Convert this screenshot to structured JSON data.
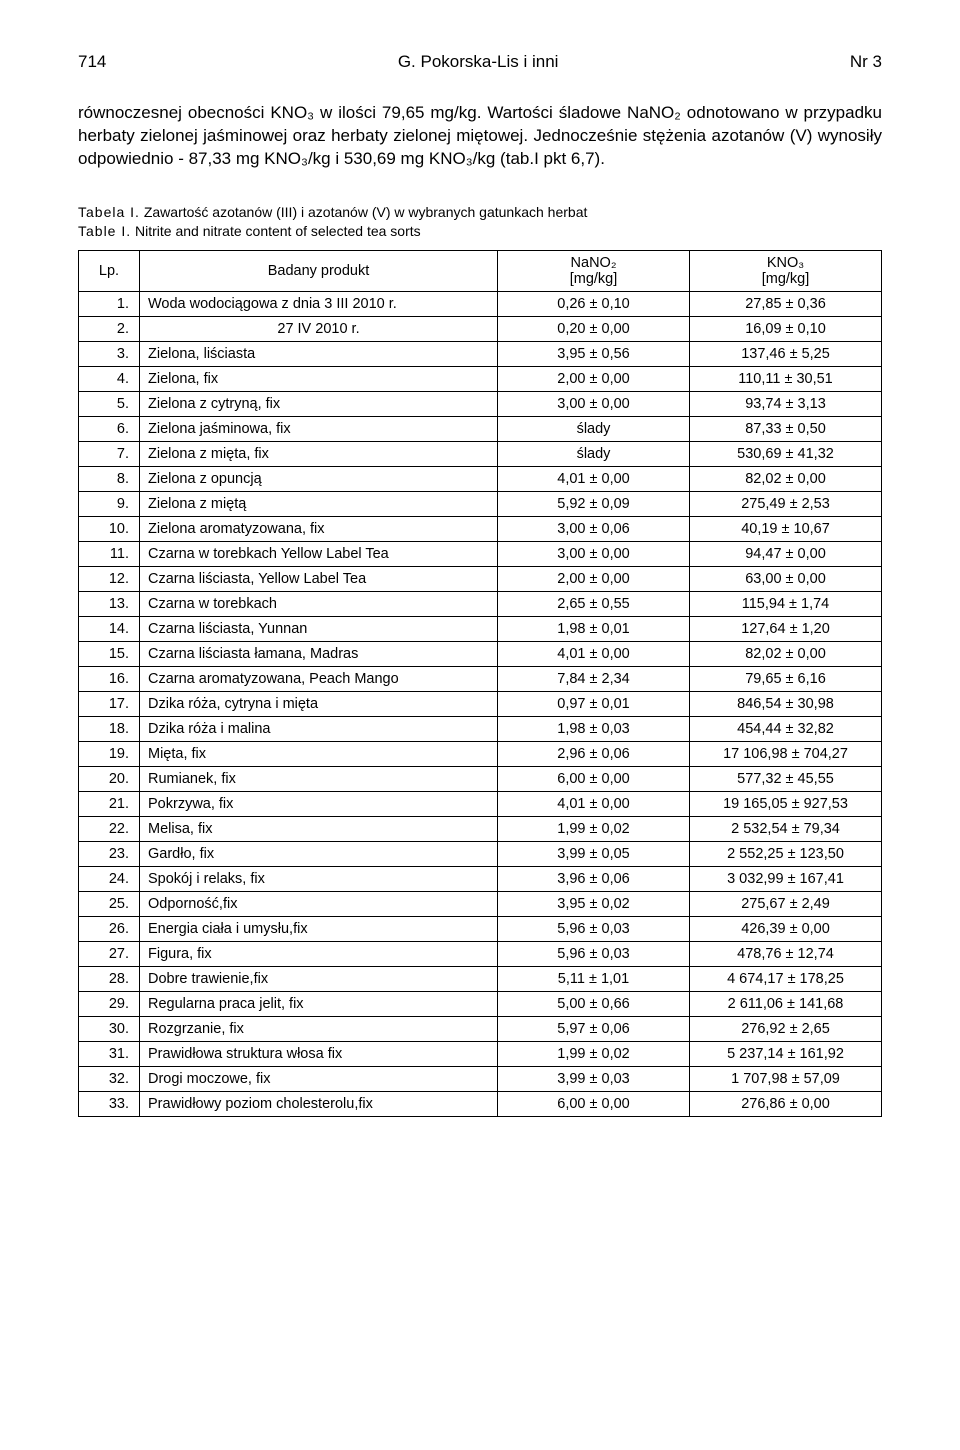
{
  "header": {
    "page_left": "714",
    "page_center": "G. Pokorska-Lis i inni",
    "page_right": "Nr 3"
  },
  "body_paragraph": "równoczesnej obecności KNO₃ w ilości 79,65 mg/kg. Wartości śladowe NaNO₂ odnotowano w przypadku herbaty zielonej jaśminowej oraz herbaty zielonej miętowej. Jednocześnie stężenia azotanów (V) wynosiły odpowiednio - 87,33 mg KNO₃/kg i 530,69 mg KNO₃/kg (tab.I pkt 6,7).",
  "table": {
    "caption1_label": "Tabela I.",
    "caption1_text": "Zawartość azotanów (III) i azotanów (V) w wybranych gatunkach herbat",
    "caption2_label": "Table I.",
    "caption2_text": "Nitrite and nitrate content of selected tea sorts",
    "headers": {
      "lp": "Lp.",
      "product": "Badany produkt",
      "nano2": "NaNO₂",
      "nano2_unit": "[mg/kg]",
      "kno3": "KNO₃",
      "kno3_unit": "[mg/kg]"
    },
    "rows": [
      {
        "lp": "1.",
        "product": "Woda wodociągowa z dnia 3 III 2010 r.",
        "centered": false,
        "nano": "0,26 ± 0,10",
        "kno": "27,85 ± 0,36"
      },
      {
        "lp": "2.",
        "product": "27 IV 2010 r.",
        "centered": true,
        "nano": "0,20 ± 0,00",
        "kno": "16,09 ± 0,10"
      },
      {
        "lp": "3.",
        "product": "Zielona, liściasta",
        "centered": false,
        "nano": "3,95 ± 0,56",
        "kno": "137,46 ± 5,25"
      },
      {
        "lp": "4.",
        "product": "Zielona, fix",
        "centered": false,
        "nano": "2,00 ± 0,00",
        "kno": "110,11 ± 30,51"
      },
      {
        "lp": "5.",
        "product": "Zielona z cytryną, fix",
        "centered": false,
        "nano": "3,00 ± 0,00",
        "kno": "93,74 ± 3,13"
      },
      {
        "lp": "6.",
        "product": "Zielona jaśminowa, fix",
        "centered": false,
        "nano": "ślady",
        "kno": "87,33 ± 0,50"
      },
      {
        "lp": "7.",
        "product": "Zielona z mięta, fix",
        "centered": false,
        "nano": "ślady",
        "kno": "530,69 ± 41,32"
      },
      {
        "lp": "8.",
        "product": "Zielona z opuncją",
        "centered": false,
        "nano": "4,01 ± 0,00",
        "kno": "82,02 ± 0,00"
      },
      {
        "lp": "9.",
        "product": "Zielona z miętą",
        "centered": false,
        "nano": "5,92 ± 0,09",
        "kno": "275,49 ± 2,53"
      },
      {
        "lp": "10.",
        "product": "Zielona aromatyzowana, fix",
        "centered": false,
        "nano": "3,00 ± 0,06",
        "kno": "40,19 ± 10,67"
      },
      {
        "lp": "11.",
        "product": "Czarna w torebkach Yellow Label Tea",
        "centered": false,
        "nano": "3,00 ± 0,00",
        "kno": "94,47 ± 0,00"
      },
      {
        "lp": "12.",
        "product": "Czarna liściasta, Yellow Label Tea",
        "centered": false,
        "nano": "2,00 ± 0,00",
        "kno": "63,00 ± 0,00"
      },
      {
        "lp": "13.",
        "product": "Czarna w torebkach",
        "centered": false,
        "nano": "2,65 ± 0,55",
        "kno": "115,94 ± 1,74"
      },
      {
        "lp": "14.",
        "product": "Czarna liściasta, Yunnan",
        "centered": false,
        "nano": "1,98 ± 0,01",
        "kno": "127,64 ± 1,20"
      },
      {
        "lp": "15.",
        "product": "Czarna liściasta łamana, Madras",
        "centered": false,
        "nano": "4,01 ± 0,00",
        "kno": "82,02 ± 0,00"
      },
      {
        "lp": "16.",
        "product": "Czarna aromatyzowana, Peach Mango",
        "centered": false,
        "nano": "7,84 ± 2,34",
        "kno": "79,65 ± 6,16"
      },
      {
        "lp": "17.",
        "product": "Dzika róża, cytryna i mięta",
        "centered": false,
        "nano": "0,97 ± 0,01",
        "kno": "846,54 ± 30,98"
      },
      {
        "lp": "18.",
        "product": "Dzika róża i malina",
        "centered": false,
        "nano": "1,98 ± 0,03",
        "kno": "454,44 ± 32,82"
      },
      {
        "lp": "19.",
        "product": "Mięta, fix",
        "centered": false,
        "nano": "2,96 ± 0,06",
        "kno": "17 106,98 ± 704,27"
      },
      {
        "lp": "20.",
        "product": "Rumianek, fix",
        "centered": false,
        "nano": "6,00 ± 0,00",
        "kno": "577,32 ± 45,55"
      },
      {
        "lp": "21.",
        "product": "Pokrzywa, fix",
        "centered": false,
        "nano": "4,01 ± 0,00",
        "kno": "19 165,05 ± 927,53"
      },
      {
        "lp": "22.",
        "product": "Melisa, fix",
        "centered": false,
        "nano": "1,99 ± 0,02",
        "kno": "2 532,54 ± 79,34"
      },
      {
        "lp": "23.",
        "product": "Gardło, fix",
        "centered": false,
        "nano": "3,99 ± 0,05",
        "kno": "2 552,25 ± 123,50"
      },
      {
        "lp": "24.",
        "product": "Spokój i relaks, fix",
        "centered": false,
        "nano": "3,96 ± 0,06",
        "kno": "3 032,99 ± 167,41"
      },
      {
        "lp": "25.",
        "product": "Odporność,fix",
        "centered": false,
        "nano": "3,95 ± 0,02",
        "kno": "275,67 ± 2,49"
      },
      {
        "lp": "26.",
        "product": "Energia ciała i umysłu,fix",
        "centered": false,
        "nano": "5,96 ± 0,03",
        "kno": "426,39 ± 0,00"
      },
      {
        "lp": "27.",
        "product": "Figura, fix",
        "centered": false,
        "nano": "5,96 ± 0,03",
        "kno": "478,76 ± 12,74"
      },
      {
        "lp": "28.",
        "product": "Dobre trawienie,fix",
        "centered": false,
        "nano": "5,11 ± 1,01",
        "kno": "4 674,17 ± 178,25"
      },
      {
        "lp": "29.",
        "product": "Regularna praca jelit, fix",
        "centered": false,
        "nano": "5,00 ± 0,66",
        "kno": "2 611,06 ± 141,68"
      },
      {
        "lp": "30.",
        "product": "Rozgrzanie, fix",
        "centered": false,
        "nano": "5,97 ± 0,06",
        "kno": "276,92 ± 2,65"
      },
      {
        "lp": "31.",
        "product": "Prawidłowa struktura włosa fix",
        "centered": false,
        "nano": "1,99 ± 0,02",
        "kno": "5 237,14 ± 161,92"
      },
      {
        "lp": "32.",
        "product": "Drogi moczowe, fix",
        "centered": false,
        "nano": "3,99 ± 0,03",
        "kno": "1 707,98 ± 57,09"
      },
      {
        "lp": "33.",
        "product": "Prawidłowy poziom cholesterolu,fix",
        "centered": false,
        "nano": "6,00 ± 0,00",
        "kno": "276,86 ± 0,00"
      }
    ]
  }
}
